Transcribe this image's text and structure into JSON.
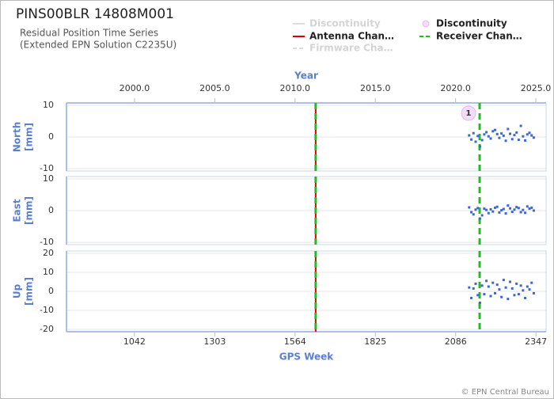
{
  "title": "PINS00BLR 14808M001",
  "subtitle": [
    "Residual Position Time Series",
    "(Extended EPN Solution C2235U)"
  ],
  "footer": "© EPN Central Bureau",
  "legend": [
    {
      "name": "Discontinuity",
      "color": "#dddddd",
      "style": "solid",
      "faded": true
    },
    {
      "name": "Antenna Chan…",
      "color": "#dd0000",
      "style": "solid",
      "faded": false
    },
    {
      "name": "Firmware Cha…",
      "color": "#dddddd",
      "style": "dashed",
      "faded": true
    },
    {
      "name": "Discontinuity",
      "color": "#f3dcf7",
      "style": "circle",
      "faded": false
    },
    {
      "name": "Receiver Chan…",
      "color": "#22bb22",
      "style": "dashed",
      "faded": false
    }
  ],
  "events": [
    {
      "legend": 1,
      "week": 1631
    },
    {
      "legend": 4,
      "week": 1631
    },
    {
      "legend": 4,
      "week": 2164
    }
  ],
  "discontinuities": [
    {
      "label": 1,
      "week": 2128
    }
  ],
  "chart_data": [
    {
      "type": "scatter",
      "ylabel": [
        "North",
        "[mm]"
      ],
      "x2label": "Year",
      "x2lim": [
        1995.76,
        2025.64
      ],
      "x2ticks": [
        {
          "value": 2000,
          "label": "2000.0"
        },
        {
          "value": 2005,
          "label": "2005.0"
        },
        {
          "value": 2010,
          "label": "2010.0"
        },
        {
          "value": 2015,
          "label": "2015.0"
        },
        {
          "value": 2020,
          "label": "2020.0"
        },
        {
          "value": 2025,
          "label": "2025.0"
        }
      ],
      "xlim": [
        821,
        2380
      ],
      "ylim": [
        -10,
        10
      ],
      "yticks": [
        -10,
        0,
        10
      ],
      "grid": true,
      "x": [
        2130,
        2137,
        2144,
        2151,
        2158,
        2165,
        2172,
        2179,
        2186,
        2193,
        2200,
        2207,
        2214,
        2221,
        2228,
        2235,
        2242,
        2249,
        2256,
        2263,
        2270,
        2277,
        2284,
        2291,
        2298,
        2305,
        2312,
        2319,
        2326,
        2333,
        2340
      ],
      "series": [
        {
          "color": "#3a66d6",
          "values": [
            0.5,
            -0.8,
            1.2,
            -1.5,
            0.3,
            -3,
            -1.0,
            0.8,
            1.5,
            0.2,
            -0.5,
            1.8,
            2.2,
            0.9,
            -0.3,
            1.1,
            0.4,
            -1.2,
            2.5,
            1.0,
            -0.7,
            0.6,
            1.4,
            -0.9,
            3.5,
            0.2,
            -1.1,
            0.8,
            1.3,
            0.5,
            -0.2
          ]
        }
      ]
    },
    {
      "type": "scatter",
      "ylabel": [
        "East",
        "[mm]"
      ],
      "xlim": [
        821,
        2380
      ],
      "ylim": [
        -10,
        10
      ],
      "yticks": [
        -10,
        0,
        10
      ],
      "grid": true,
      "x": [
        2130,
        2137,
        2144,
        2151,
        2158,
        2165,
        2172,
        2179,
        2186,
        2193,
        2200,
        2207,
        2214,
        2221,
        2228,
        2235,
        2242,
        2249,
        2256,
        2263,
        2270,
        2277,
        2284,
        2291,
        2298,
        2305,
        2312,
        2319,
        2326,
        2333,
        2340
      ],
      "series": [
        {
          "color": "#3a66d6",
          "values": [
            1.0,
            -0.5,
            -1.2,
            0.3,
            0.8,
            -2.5,
            -1.5,
            0.6,
            0.2,
            -0.8,
            0.4,
            -0.3,
            0.9,
            1.2,
            -0.6,
            0.1,
            0.5,
            -0.9,
            1.6,
            0.7,
            -0.4,
            0.3,
            1.1,
            0.8,
            -0.5,
            0.2,
            -0.7,
            1.3,
            0.6,
            0.9,
            0.0
          ]
        }
      ]
    },
    {
      "type": "scatter",
      "ylabel": [
        "Up",
        "[mm]"
      ],
      "xlabel": "GPS Week",
      "xlim": [
        821,
        2380
      ],
      "xticks": [
        1042,
        1303,
        1564,
        1825,
        2086,
        2347
      ],
      "ylim": [
        -20,
        20
      ],
      "yticks": [
        -20,
        -10,
        0,
        10,
        20
      ],
      "grid": true,
      "x": [
        2130,
        2137,
        2144,
        2151,
        2158,
        2165,
        2172,
        2179,
        2186,
        2193,
        2200,
        2207,
        2214,
        2221,
        2228,
        2235,
        2242,
        2249,
        2256,
        2263,
        2270,
        2277,
        2284,
        2291,
        2298,
        2305,
        2312,
        2319,
        2326,
        2333,
        2340
      ],
      "series": [
        {
          "color": "#3a66d6",
          "values": [
            2.0,
            -3.5,
            1.5,
            4.0,
            -2.0,
            -6.0,
            3.0,
            -1.5,
            5.5,
            2.5,
            -2.5,
            4.5,
            -1.0,
            3.5,
            1.0,
            -3.0,
            6.0,
            2.0,
            -4.0,
            5.0,
            1.5,
            -2.0,
            4.0,
            -1.5,
            3.0,
            0.5,
            -3.5,
            2.5,
            1.0,
            4.5,
            -1.0
          ]
        }
      ]
    }
  ]
}
